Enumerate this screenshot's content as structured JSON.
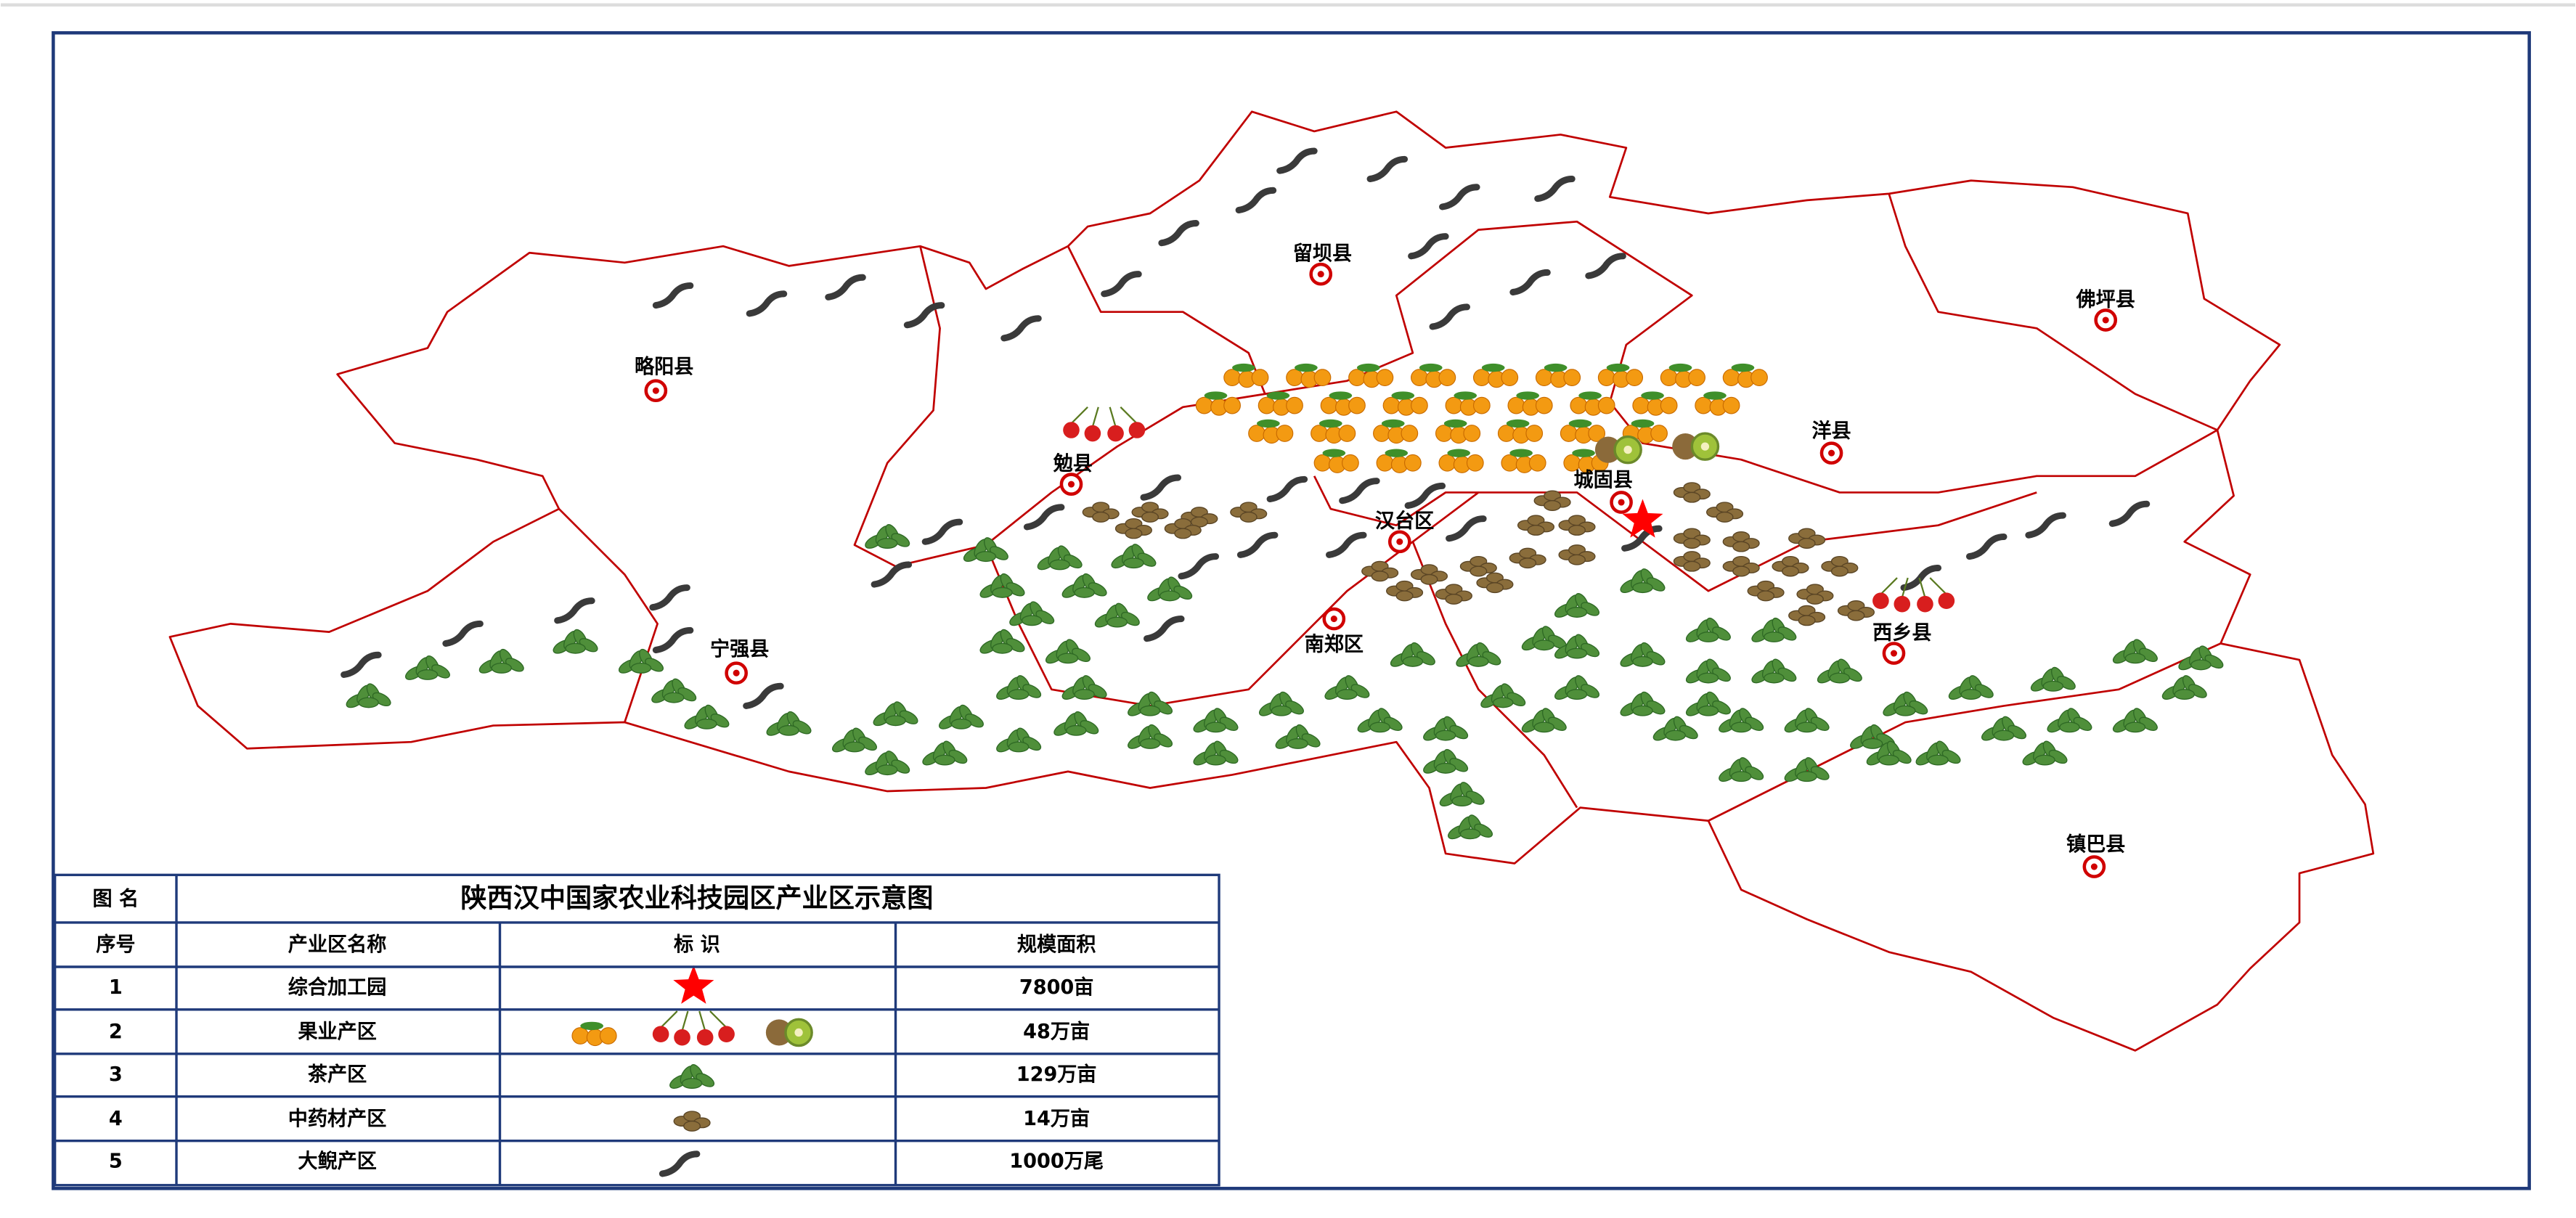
{
  "map": {
    "counties": [
      {
        "label": "略阳县"
      },
      {
        "label": "留坝县"
      },
      {
        "label": "佛坪县"
      },
      {
        "label": "洋县"
      },
      {
        "label": "勉县"
      },
      {
        "label": "城固县"
      },
      {
        "label": "汉台区"
      },
      {
        "label": "宁强县"
      },
      {
        "label": "南郑区"
      },
      {
        "label": "西乡县"
      },
      {
        "label": "镇巴县"
      }
    ]
  },
  "legend_table": {
    "title_label": "图 名",
    "title": "陕西汉中国家农业科技园区产业区示意图",
    "header": [
      "序号",
      "产业区名称",
      "标 识",
      "规模面积"
    ],
    "rows": [
      [
        "1",
        "综合加工园",
        "7800亩"
      ],
      [
        "2",
        "果业产区",
        "48万亩"
      ],
      [
        "3",
        "茶产区",
        "129万亩"
      ],
      [
        "4",
        "中药材产区",
        "14万亩"
      ],
      [
        "5",
        "大鲵产区",
        "1000万尾"
      ]
    ]
  }
}
